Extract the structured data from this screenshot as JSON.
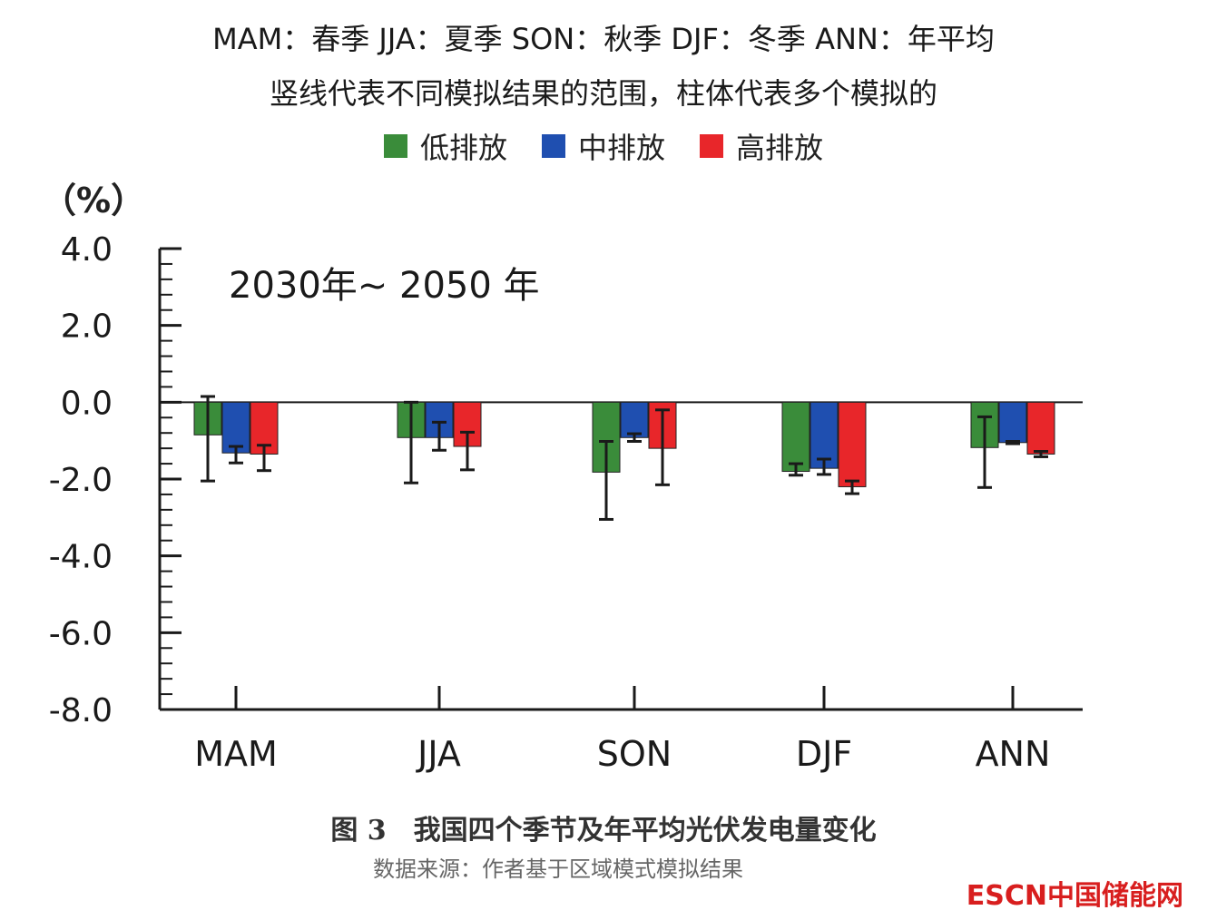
{
  "header": {
    "season_key": "MAM：春季    JJA：夏季    SON：秋季    DJF：冬季    ANN：年平均",
    "note": "竖线代表不同模拟结果的范围，柱体代表多个模拟的"
  },
  "colors": {
    "low": "#3a8c3a",
    "mid": "#1f4fb0",
    "high": "#e8262a",
    "axis": "#1a1a1a"
  },
  "chart_data": {
    "type": "bar",
    "title": "",
    "annotation": "2030年~ 2050 年",
    "unit": "（%）",
    "xlabel": "",
    "ylabel": "（%）",
    "ylim": [
      -8,
      4
    ],
    "yticks": [
      4.0,
      2.0,
      0.0,
      -2.0,
      -4.0,
      -6.0,
      -8.0
    ],
    "ytick_labels": [
      "4.0",
      "2.0",
      "0.0",
      "-2.0",
      "-4.0",
      "-6.0",
      "-8.0"
    ],
    "categories": [
      "MAM",
      "JJA",
      "SON",
      "DJF",
      "ANN"
    ],
    "legend_position": "top",
    "series": [
      {
        "key": "low",
        "name": "低排放",
        "values": [
          -0.85,
          -0.92,
          -1.82,
          -1.8,
          -1.18
        ],
        "range_low": [
          -2.05,
          -2.1,
          -3.05,
          -1.9,
          -2.22
        ],
        "range_high": [
          0.15,
          0.0,
          -1.02,
          -1.6,
          -0.38
        ]
      },
      {
        "key": "mid",
        "name": "中排放",
        "values": [
          -1.32,
          -0.92,
          -0.92,
          -1.72,
          -1.05
        ],
        "range_low": [
          -1.58,
          -1.25,
          -1.02,
          -1.88,
          -1.08
        ],
        "range_high": [
          -1.15,
          -0.52,
          -0.82,
          -1.48,
          -1.02
        ]
      },
      {
        "key": "high",
        "name": "高排放",
        "values": [
          -1.35,
          -1.15,
          -1.2,
          -2.2,
          -1.35
        ],
        "range_low": [
          -1.78,
          -1.76,
          -2.15,
          -2.38,
          -1.42
        ],
        "range_high": [
          -1.12,
          -0.78,
          -0.2,
          -2.05,
          -1.28
        ]
      }
    ]
  },
  "caption": {
    "fig": "图 3",
    "title": "我国四个季节及年平均光伏发电量变化"
  },
  "source": "数据来源：作者基于区域模式模拟结果",
  "watermark": "ESCN中国储能网"
}
